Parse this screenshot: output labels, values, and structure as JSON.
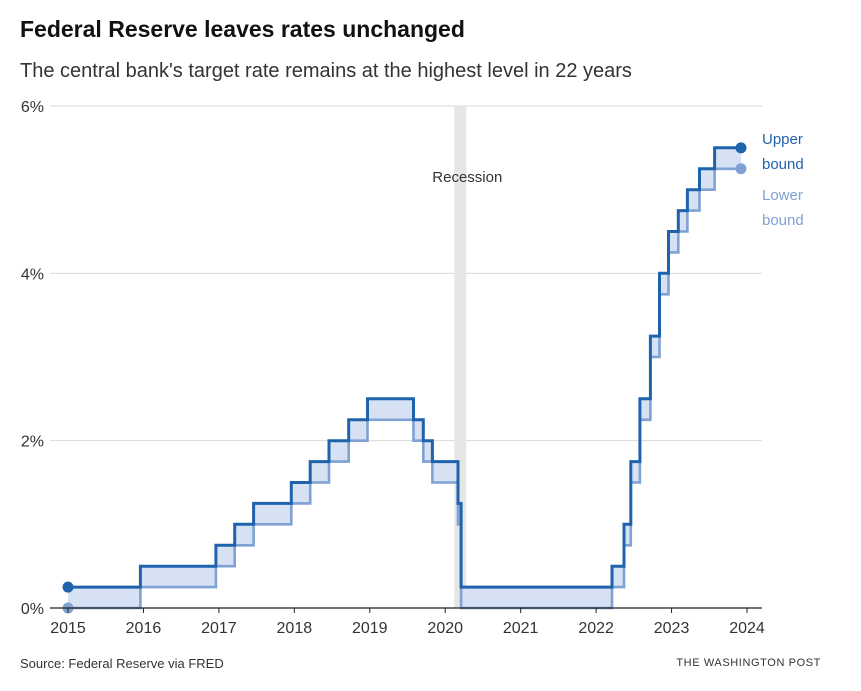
{
  "header": {
    "title": "Federal Reserve leaves rates unchanged",
    "subtitle": "The central bank's target rate remains at the highest level in 22 years"
  },
  "footer": {
    "source": "Source: Federal Reserve via FRED",
    "credit": "THE WASHINGTON POST"
  },
  "colors": {
    "upper": "#1f63ad",
    "lower": "#7fa1d4",
    "band_fill": "#d7e1f4",
    "recession": "#e6e6e6",
    "grid": "#d9d9d9",
    "axis": "#222222"
  },
  "chart_data": {
    "type": "line",
    "step": true,
    "x_axis": {
      "range": [
        2015,
        2024
      ],
      "ticks": [
        2015,
        2016,
        2017,
        2018,
        2019,
        2020,
        2021,
        2022,
        2023,
        2024
      ]
    },
    "y_axis": {
      "range": [
        0,
        6
      ],
      "ticks": [
        0,
        2,
        4,
        6
      ],
      "tick_labels": [
        "0%",
        "2%",
        "4%",
        "6%"
      ]
    },
    "grid": true,
    "annotations": [
      {
        "text": "Recession",
        "start": 2020.12,
        "end": 2020.28
      }
    ],
    "series": [
      {
        "name": "Upper bound",
        "label_lines": [
          "Upper",
          "bound"
        ],
        "values": [
          [
            2015.0,
            0.25
          ],
          [
            2015.96,
            0.5
          ],
          [
            2016.96,
            0.75
          ],
          [
            2017.21,
            1.0
          ],
          [
            2017.46,
            1.25
          ],
          [
            2017.96,
            1.5
          ],
          [
            2018.21,
            1.75
          ],
          [
            2018.46,
            2.0
          ],
          [
            2018.72,
            2.25
          ],
          [
            2018.97,
            2.5
          ],
          [
            2019.58,
            2.25
          ],
          [
            2019.71,
            2.0
          ],
          [
            2019.83,
            1.75
          ],
          [
            2020.17,
            1.25
          ],
          [
            2020.21,
            0.25
          ],
          [
            2022.21,
            0.5
          ],
          [
            2022.37,
            1.0
          ],
          [
            2022.46,
            1.75
          ],
          [
            2022.58,
            2.5
          ],
          [
            2022.72,
            3.25
          ],
          [
            2022.84,
            4.0
          ],
          [
            2022.96,
            4.5
          ],
          [
            2023.09,
            4.75
          ],
          [
            2023.21,
            5.0
          ],
          [
            2023.37,
            5.25
          ],
          [
            2023.57,
            5.5
          ],
          [
            2023.92,
            5.5
          ]
        ]
      },
      {
        "name": "Lower bound",
        "label_lines": [
          "Lower",
          "bound"
        ],
        "values": [
          [
            2015.0,
            0.0
          ],
          [
            2015.96,
            0.25
          ],
          [
            2016.96,
            0.5
          ],
          [
            2017.21,
            0.75
          ],
          [
            2017.46,
            1.0
          ],
          [
            2017.96,
            1.25
          ],
          [
            2018.21,
            1.5
          ],
          [
            2018.46,
            1.75
          ],
          [
            2018.72,
            2.0
          ],
          [
            2018.97,
            2.25
          ],
          [
            2019.58,
            2.0
          ],
          [
            2019.71,
            1.75
          ],
          [
            2019.83,
            1.5
          ],
          [
            2020.17,
            1.0
          ],
          [
            2020.21,
            0.0
          ],
          [
            2022.21,
            0.25
          ],
          [
            2022.37,
            0.75
          ],
          [
            2022.46,
            1.5
          ],
          [
            2022.58,
            2.25
          ],
          [
            2022.72,
            3.0
          ],
          [
            2022.84,
            3.75
          ],
          [
            2022.96,
            4.25
          ],
          [
            2023.09,
            4.5
          ],
          [
            2023.21,
            4.75
          ],
          [
            2023.37,
            5.0
          ],
          [
            2023.57,
            5.25
          ],
          [
            2023.92,
            5.25
          ]
        ]
      }
    ]
  }
}
